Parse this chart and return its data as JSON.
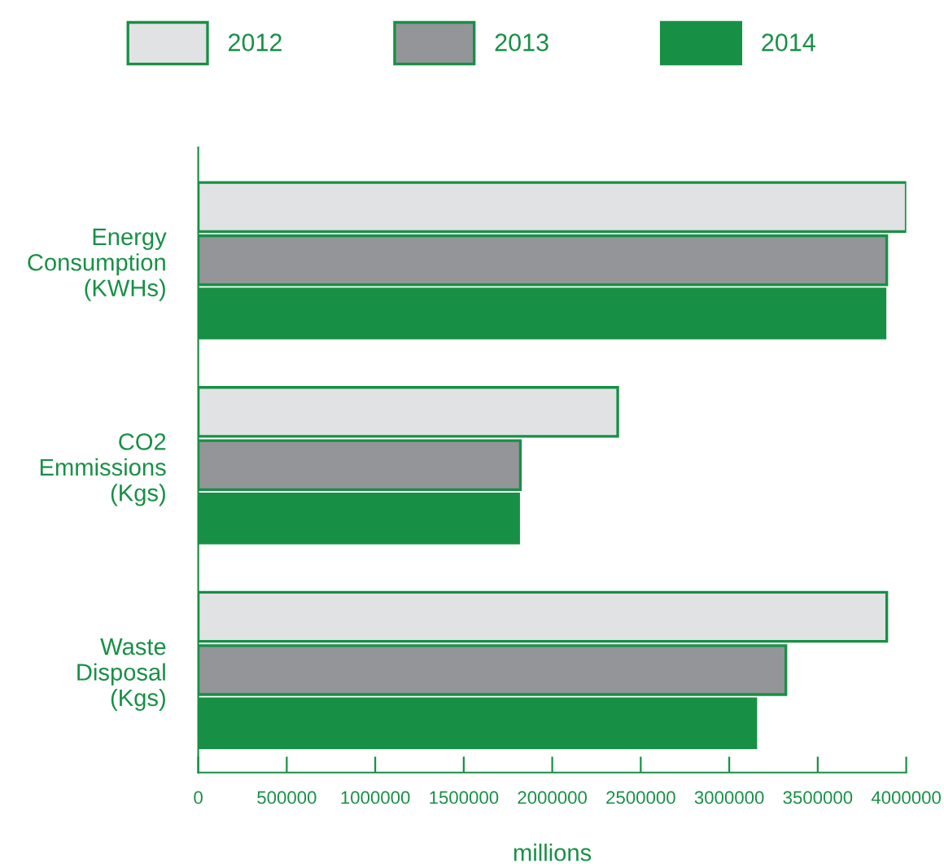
{
  "chart_data": {
    "type": "bar",
    "orientation": "horizontal",
    "categories": [
      "Energy\nConsumption\n(KWHs)",
      "CO2\nEmmissions\n(Kgs)",
      "Waste\nDisposal\n(Kgs)"
    ],
    "series": [
      {
        "name": "2012",
        "color": "#e1e2e3",
        "values": [
          4000000,
          2370000,
          3890000
        ]
      },
      {
        "name": "2013",
        "color": "#939598",
        "values": [
          3890000,
          1820000,
          3320000
        ]
      },
      {
        "name": "2014",
        "color": "#179045",
        "values": [
          3880000,
          1810000,
          3150000
        ]
      }
    ],
    "xlabel": "millions",
    "xlim": [
      0,
      4000000
    ],
    "xticks": [
      0,
      500000,
      1000000,
      1500000,
      2000000,
      2500000,
      3000000,
      3500000,
      4000000
    ],
    "legend": "top",
    "grid": false
  }
}
